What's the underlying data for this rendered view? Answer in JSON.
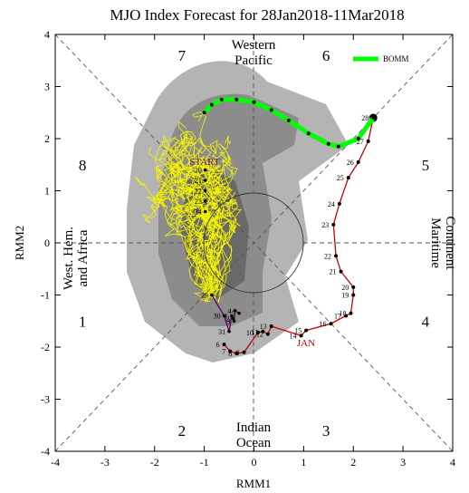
{
  "chart_data": {
    "type": "line",
    "title": "MJO Index Forecast for 28Jan2018-11Mar2018",
    "xlabel": "RMM1",
    "ylabel": "RMM2",
    "xlim": [
      -4,
      4
    ],
    "ylim": [
      -4,
      4
    ],
    "xticks": [
      "-4",
      "-3",
      "-2",
      "-1",
      "0",
      "1",
      "2",
      "3",
      "4"
    ],
    "yticks": [
      "-4",
      "-3",
      "-2",
      "-1",
      "0",
      "1",
      "2",
      "3",
      "4"
    ],
    "grid": false,
    "legend": {
      "position": "top-right",
      "entries": [
        {
          "name": "BOMM",
          "color": "#00ff00"
        }
      ]
    },
    "unit_circle_radius": 1,
    "phase_numbers": [
      {
        "label": "1",
        "x": -3.45,
        "y": -1.5
      },
      {
        "label": "2",
        "x": -1.45,
        "y": -3.6
      },
      {
        "label": "3",
        "x": 1.45,
        "y": -3.6
      },
      {
        "label": "4",
        "x": 3.45,
        "y": -1.5
      },
      {
        "label": "5",
        "x": 3.45,
        "y": 1.5
      },
      {
        "label": "6",
        "x": 1.45,
        "y": 3.6
      },
      {
        "label": "7",
        "x": -1.45,
        "y": 3.6
      },
      {
        "label": "8",
        "x": -3.45,
        "y": 1.5
      }
    ],
    "region_labels": {
      "western_pacific": [
        "Western",
        "Pacific"
      ],
      "indian_ocean": [
        "Indian",
        "Ocean"
      ],
      "maritime_continent": [
        "Maritime",
        "Continent"
      ],
      "west_hem_africa": [
        "West. Hem.",
        "and Africa"
      ]
    },
    "annotations": {
      "start": "START",
      "month": "JAN"
    },
    "observed": {
      "color": "#cc0000",
      "points": [
        {
          "label": "6",
          "x": -0.6,
          "y": -1.95
        },
        {
          "label": "7",
          "x": -0.48,
          "y": -2.08
        },
        {
          "label": "8",
          "x": -0.35,
          "y": -2.12
        },
        {
          "label": "9",
          "x": -0.2,
          "y": -2.1
        },
        {
          "label": "10",
          "x": 0.08,
          "y": -1.72
        },
        {
          "label": "11",
          "x": 0.18,
          "y": -1.7
        },
        {
          "label": "12",
          "x": 0.28,
          "y": -1.75
        },
        {
          "label": "13",
          "x": 0.35,
          "y": -1.6
        },
        {
          "label": "14",
          "x": 0.95,
          "y": -1.78
        },
        {
          "label": "15",
          "x": 1.05,
          "y": -1.68
        },
        {
          "label": "16",
          "x": 1.55,
          "y": -1.55
        },
        {
          "label": "17",
          "x": 1.85,
          "y": -1.4
        },
        {
          "label": "18",
          "x": 1.95,
          "y": -1.35
        },
        {
          "label": "19",
          "x": 2.0,
          "y": -1.0
        },
        {
          "label": "20",
          "x": 2.0,
          "y": -0.85
        },
        {
          "label": "21",
          "x": 1.75,
          "y": -0.55
        },
        {
          "label": "22",
          "x": 1.65,
          "y": -0.25
        },
        {
          "label": "23",
          "x": 1.6,
          "y": 0.35
        },
        {
          "label": "24",
          "x": 1.72,
          "y": 0.75
        },
        {
          "label": "25",
          "x": 1.9,
          "y": 1.25
        },
        {
          "label": "26",
          "x": 2.1,
          "y": 1.55
        },
        {
          "label": "27",
          "x": 2.3,
          "y": 1.95
        },
        {
          "label": "28",
          "x": 2.4,
          "y": 2.4
        }
      ]
    },
    "ensemble_mean": {
      "color": "#600060",
      "points": [
        {
          "label": "29",
          "x": -0.85,
          "y": -1.0
        },
        {
          "label": "30",
          "x": -0.6,
          "y": -1.4
        },
        {
          "label": "31",
          "x": -0.5,
          "y": -1.7
        },
        {
          "label": "1",
          "x": -0.45,
          "y": -1.4
        },
        {
          "label": "2",
          "x": -0.42,
          "y": -1.45
        },
        {
          "label": "3",
          "x": -0.4,
          "y": -1.5
        },
        {
          "label": "4",
          "x": -0.38,
          "y": -1.3
        },
        {
          "label": "5",
          "x": -0.3,
          "y": -1.35
        }
      ]
    },
    "forecast_path_labels": [
      "20",
      "21",
      "22",
      "23",
      "24"
    ],
    "series": [
      {
        "name": "BOMM",
        "color": "#00ff00",
        "x": [
          2.4,
          2.1,
          1.7,
          1.5,
          1.1,
          0.7,
          0.35,
          0.0,
          -0.35,
          -0.65,
          -0.85,
          -1.0
        ],
        "y": [
          2.4,
          2.0,
          1.85,
          1.9,
          2.1,
          2.35,
          2.55,
          2.7,
          2.75,
          2.75,
          2.65,
          2.5
        ]
      }
    ]
  }
}
